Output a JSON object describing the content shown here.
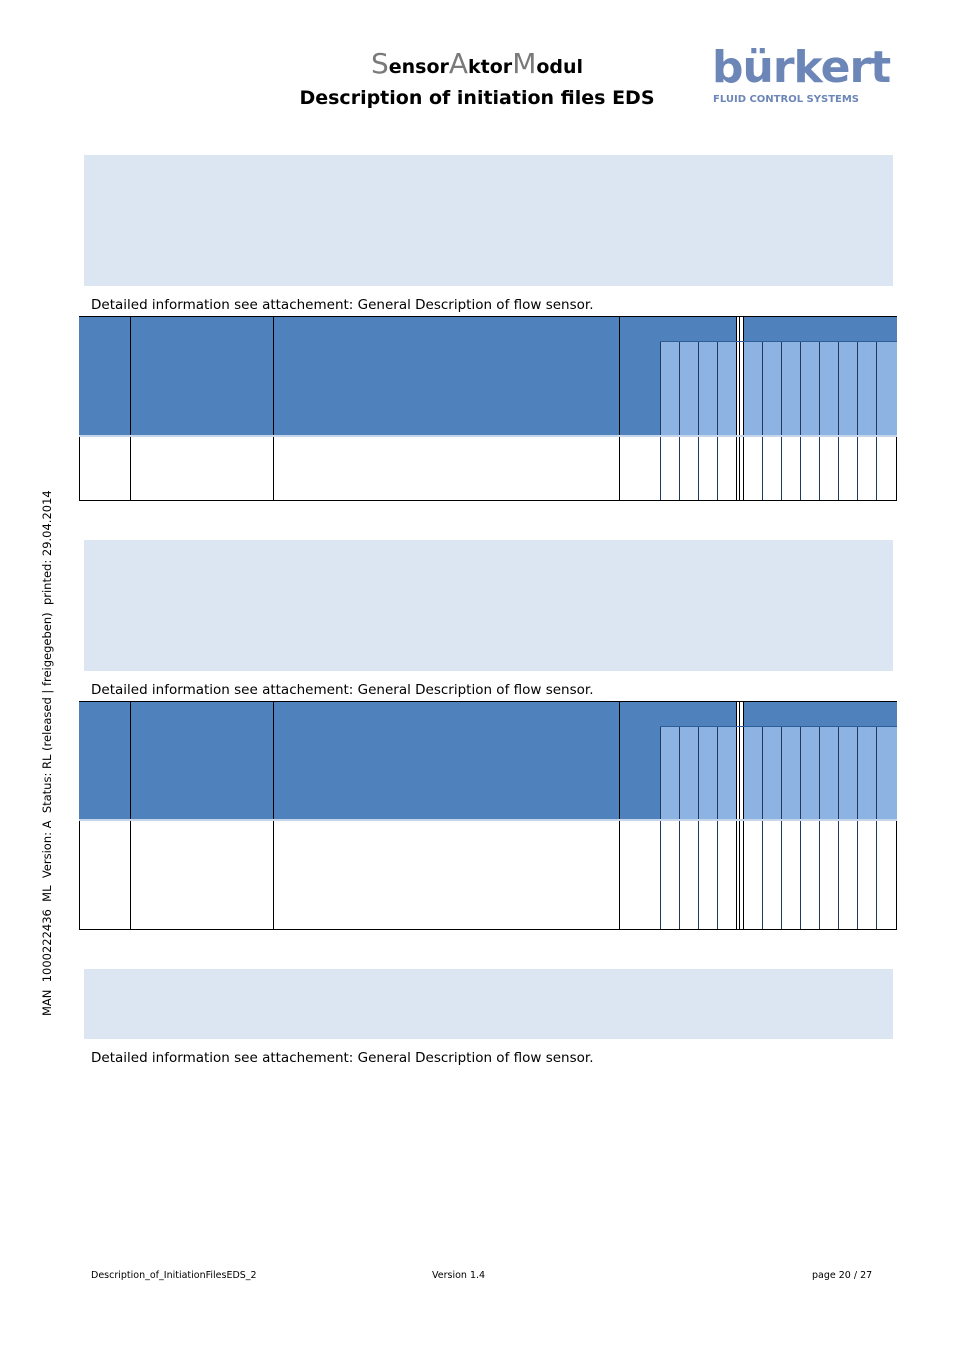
{
  "header": {
    "title_caps": [
      "S",
      "A",
      "M"
    ],
    "title_parts": [
      "ensor",
      "ktor",
      "odul"
    ],
    "subtitle": "Description of initiation files EDS"
  },
  "logo": {
    "word": "bürkert",
    "tagline": "FLUID CONTROL SYSTEMS"
  },
  "sections": [
    {
      "note": "Detailed information see attachement: General Description of flow sensor."
    },
    {
      "note": "Detailed information see attachement: General Description of flow sensor."
    },
    {
      "note": "Detailed information see attachement: General Description of flow sensor."
    }
  ],
  "side_text": "MAN  1000222436  ML  Version: A  Status: RL (released | freigegeben)  printed: 29.04.2014",
  "footer": {
    "document": "Description_of_InitiationFilesEDS_2",
    "version": "Version 1.4",
    "page": "page 20 / 27"
  },
  "colors": {
    "shade": "#dce6f2",
    "header_dark": "#4f81bd",
    "header_light": "#8db3e2",
    "logo": "#6d86b8"
  }
}
